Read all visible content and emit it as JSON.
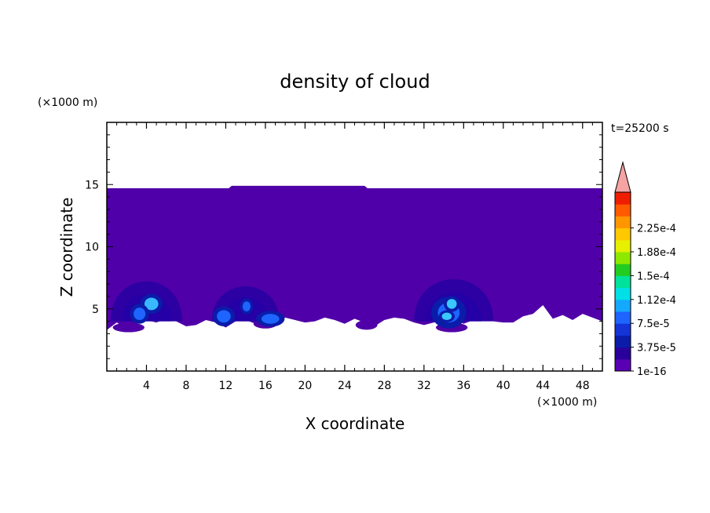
{
  "chart_data": {
    "type": "heatmap",
    "title": "density of cloud",
    "xlabel": "X coordinate",
    "ylabel": "Z coordinate",
    "x_unit": "(×1000 m)",
    "y_unit": "(×1000 m)",
    "time_label": "t=25200 s",
    "xlim": [
      0,
      50
    ],
    "ylim": [
      0,
      20
    ],
    "x_ticks": [
      4,
      8,
      12,
      16,
      20,
      24,
      28,
      32,
      36,
      40,
      44,
      48
    ],
    "y_ticks": [
      5,
      10,
      15
    ],
    "colorbar": {
      "labels": [
        "1e-16",
        "3.75e-5",
        "7.5e-5",
        "1.12e-4",
        "1.5e-4",
        "1.88e-4",
        "2.25e-4"
      ],
      "colors": [
        "#5a00b4",
        "#2a009a",
        "#0a1ca8",
        "#1434d8",
        "#1e64ff",
        "#14a8ff",
        "#00e0e6",
        "#00e29a",
        "#22cc22",
        "#8ee800",
        "#e6f000",
        "#ffc800",
        "#ff9600",
        "#ff5a00",
        "#f01e00"
      ],
      "over_color": "#f5a3a3"
    },
    "regions": {
      "main_layer": {
        "x": [
          0,
          50
        ],
        "z_top": 14.7,
        "z_top_bump": 14.9,
        "bump_x": [
          12.3,
          26.3
        ],
        "color": "#5000a8"
      },
      "domes": [
        {
          "x": 4,
          "z_base": 4,
          "half_width": 3.6,
          "height": 3.9,
          "color": "#2c00a2"
        },
        {
          "x": 14,
          "z_base": 4,
          "half_width": 3.4,
          "height": 3.4,
          "color": "#2c00a2"
        },
        {
          "x": 35,
          "z_base": 4,
          "half_width": 4.0,
          "height": 4.1,
          "color": "#2c00a2"
        }
      ],
      "hot_spots": [
        {
          "x": 4.5,
          "z": 5.4,
          "rx": 0.7,
          "rz": 0.5,
          "color": "#39b8ff"
        },
        {
          "x": 3.3,
          "z": 4.6,
          "rx": 0.6,
          "rz": 0.5,
          "color": "#1e64ff"
        },
        {
          "x": 11.8,
          "z": 4.4,
          "rx": 0.7,
          "rz": 0.5,
          "color": "#1e64ff"
        },
        {
          "x": 14.1,
          "z": 5.2,
          "rx": 0.4,
          "rz": 0.4,
          "color": "#1e64ff"
        },
        {
          "x": 16.5,
          "z": 4.2,
          "rx": 0.9,
          "rz": 0.4,
          "color": "#1e64ff"
        },
        {
          "x": 34.5,
          "z": 4.7,
          "rx": 1.1,
          "rz": 0.8,
          "color": "#1e64ff"
        },
        {
          "x": 34.8,
          "z": 5.4,
          "rx": 0.5,
          "rz": 0.4,
          "color": "#39c8ff"
        },
        {
          "x": 34.3,
          "z": 4.4,
          "rx": 0.5,
          "rz": 0.3,
          "color": "#39c8ff"
        }
      ]
    }
  }
}
